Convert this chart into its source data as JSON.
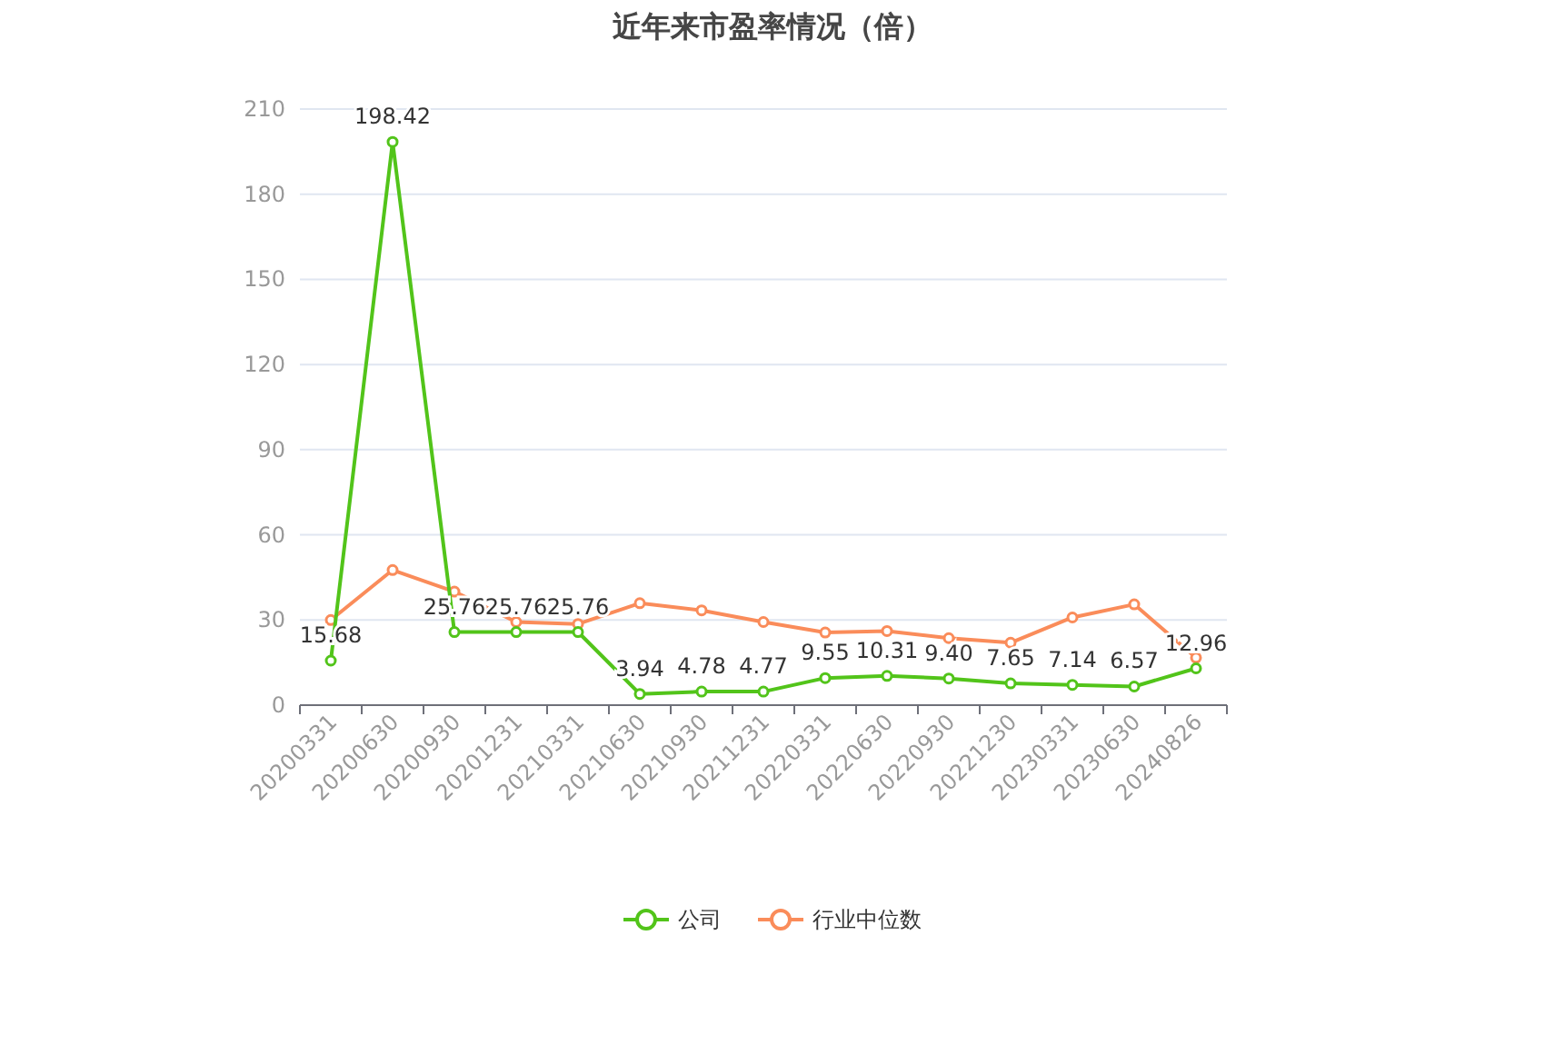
{
  "chart_data": {
    "type": "line",
    "title": "近年来市盈率情况（倍）",
    "categories": [
      "20200331",
      "20200630",
      "20200930",
      "20201231",
      "20210331",
      "20210630",
      "20210930",
      "20211231",
      "20220331",
      "20220630",
      "20220930",
      "20221230",
      "20230331",
      "20230630",
      "20240826"
    ],
    "series": [
      {
        "name": "公司",
        "color": "#52c41a",
        "values": [
          15.68,
          198.42,
          25.76,
          25.76,
          25.76,
          3.94,
          4.78,
          4.77,
          9.55,
          10.31,
          9.4,
          7.65,
          7.14,
          6.57,
          12.96
        ],
        "value_labels": [
          "15.68",
          "198.42",
          "25.76",
          "25.76",
          "25.76",
          "3.94",
          "4.78",
          "4.77",
          "9.55",
          "10.31",
          "9.40",
          "7.65",
          "7.14",
          "6.57",
          "12.96"
        ]
      },
      {
        "name": "行业中位数",
        "color": "#fa8c5a",
        "values": [
          30.0,
          47.6,
          40.0,
          29.3,
          28.6,
          35.9,
          33.4,
          29.3,
          25.6,
          26.1,
          23.6,
          22.0,
          30.9,
          35.5,
          16.7
        ]
      }
    ],
    "ylim": [
      0,
      210
    ],
    "yticks": [
      0,
      30,
      60,
      90,
      120,
      150,
      180,
      210
    ],
    "grid": "y",
    "legend": "bottom",
    "marker": "circle",
    "line_style": "solid"
  }
}
